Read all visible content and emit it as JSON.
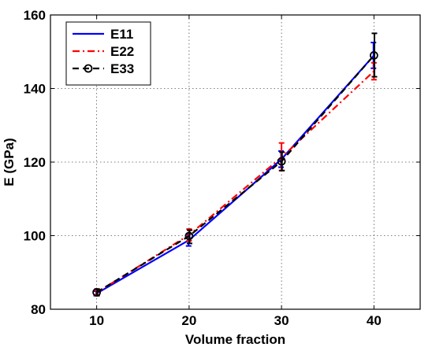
{
  "chart_data": {
    "type": "line",
    "title": "",
    "xlabel": "Volume fraction",
    "ylabel": "E (GPa)",
    "xlim": [
      5,
      45
    ],
    "ylim": [
      80,
      160
    ],
    "xticks": [
      10,
      20,
      30,
      40
    ],
    "yticks": [
      80,
      100,
      120,
      140,
      160
    ],
    "grid": true,
    "grid_style": "dotted",
    "legend_position": "top-left",
    "x": [
      10,
      20,
      30,
      40
    ],
    "series": [
      {
        "name": "E11",
        "color": "#0000ff",
        "dash": "solid",
        "marker": "none",
        "values": [
          84.3,
          98.8,
          120.8,
          149.0
        ],
        "err_low": [
          0.6,
          1.6,
          2.2,
          3.5
        ],
        "err_high": [
          0.6,
          1.6,
          2.2,
          3.5
        ]
      },
      {
        "name": "E22",
        "color": "#ff0000",
        "dash": "dashdot",
        "marker": "none",
        "values": [
          84.5,
          100.2,
          121.3,
          144.7
        ],
        "err_low": [
          0.6,
          1.6,
          3.6,
          2.3
        ],
        "err_high": [
          0.6,
          1.6,
          3.9,
          2.3
        ]
      },
      {
        "name": "E33",
        "color": "#000000",
        "dash": "dashed",
        "marker": "circle",
        "values": [
          84.6,
          99.9,
          120.2,
          149.0
        ],
        "err_low": [
          0.9,
          2.0,
          2.5,
          5.8
        ],
        "err_high": [
          0.9,
          1.6,
          2.5,
          6.0
        ]
      }
    ]
  }
}
